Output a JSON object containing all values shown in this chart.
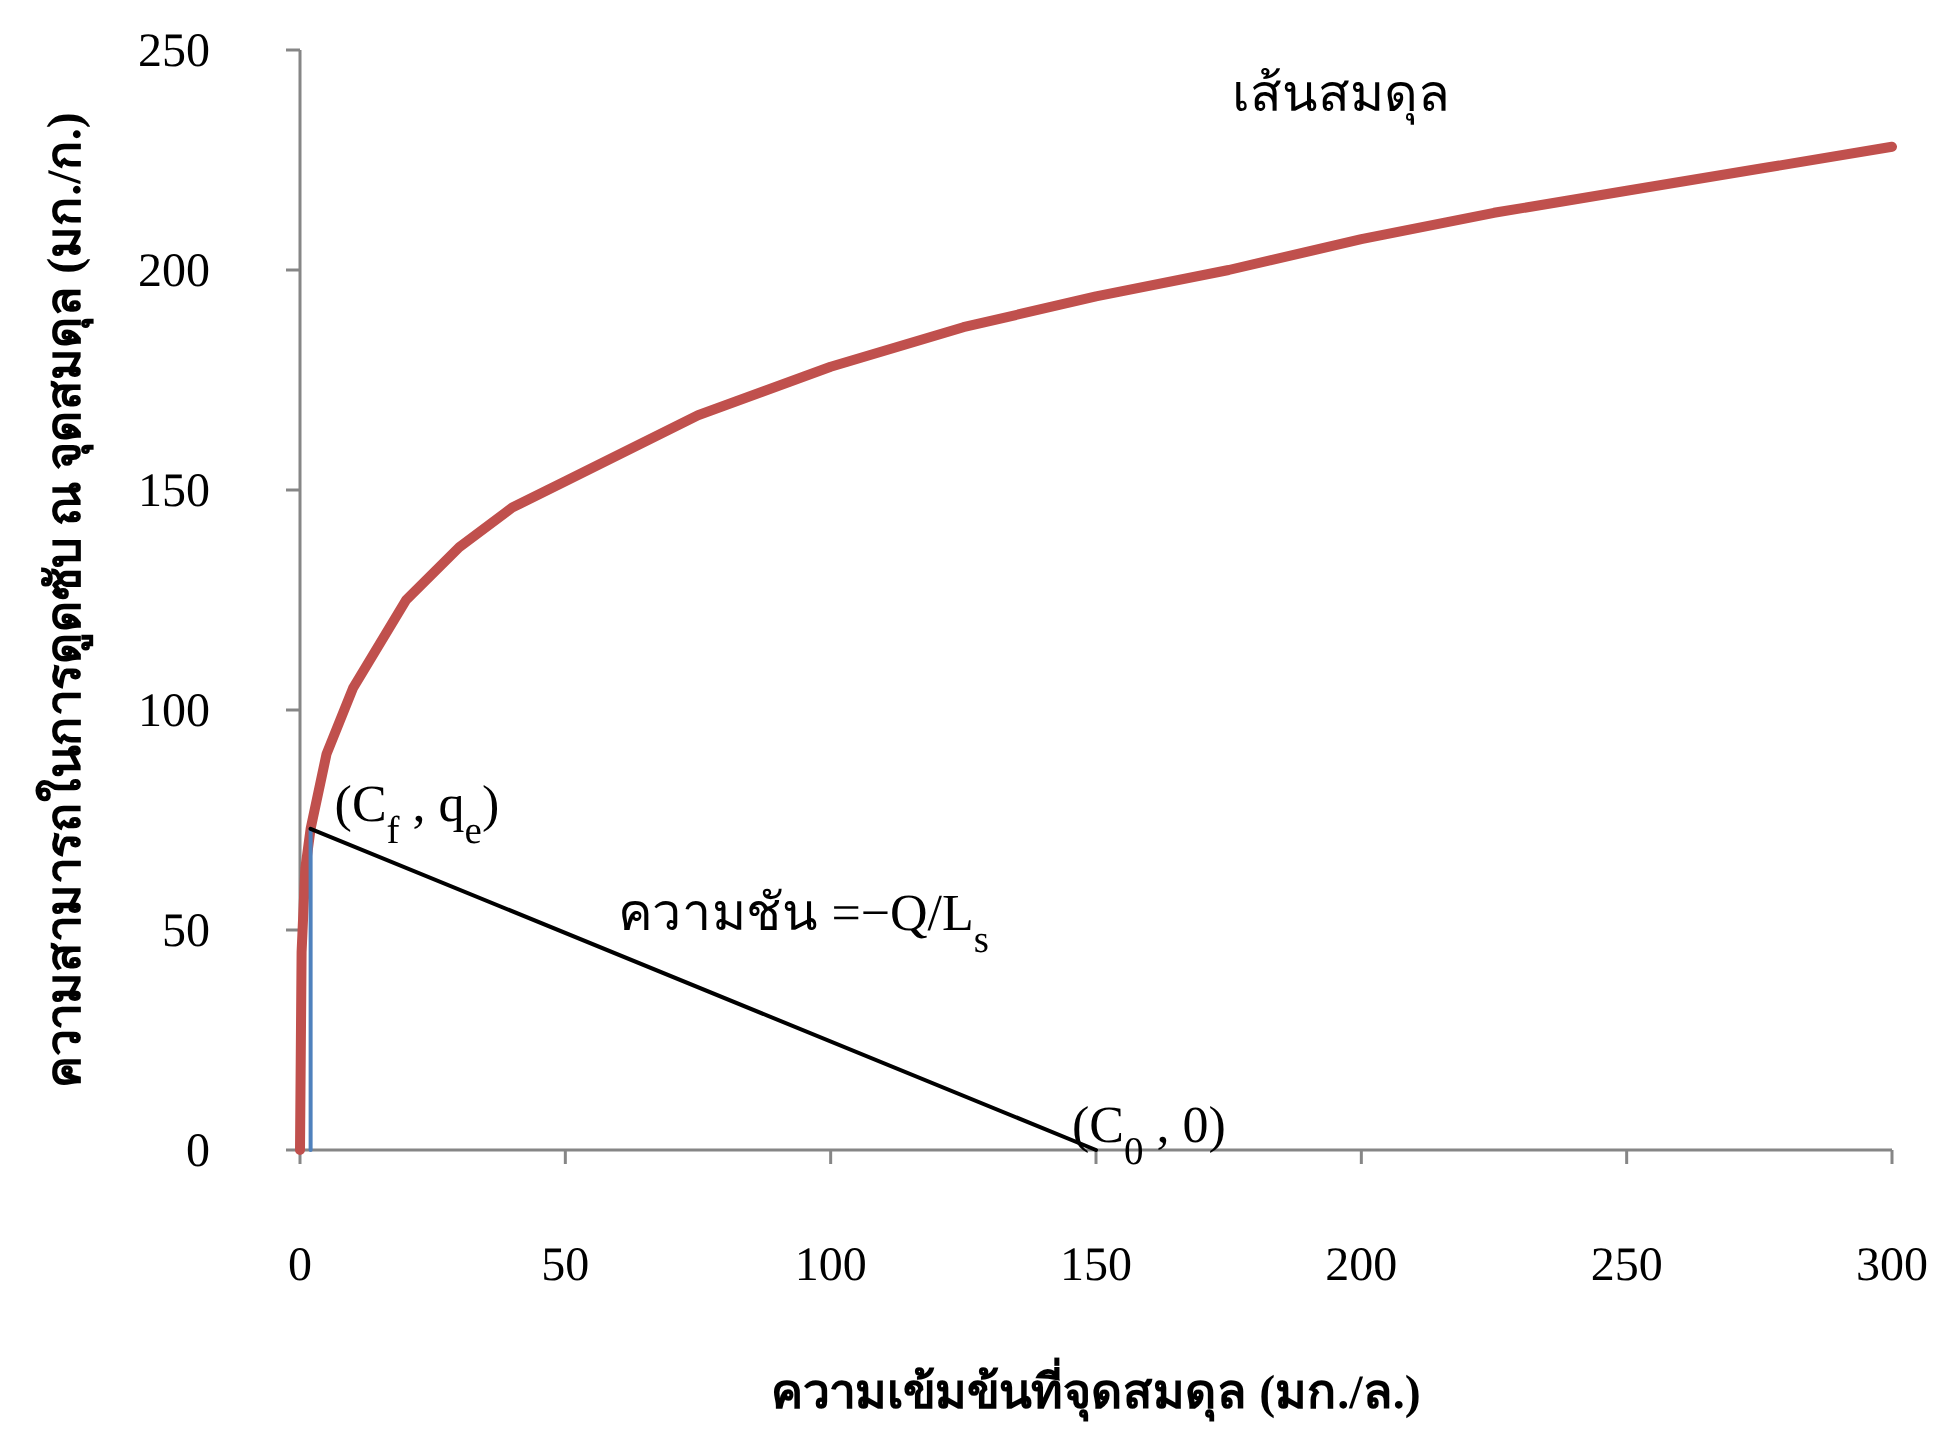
{
  "chart_data": {
    "type": "line",
    "xlabel": "ความเข้มข้นที่จุดสมดุล (มก./ล.)",
    "ylabel": "ความสามารถในการดูดซับ ณ จุดสมดุล (มก./ก.)",
    "xlim": [
      0,
      300
    ],
    "ylim": [
      0,
      250
    ],
    "xticks": [
      0,
      50,
      100,
      150,
      200,
      250,
      300
    ],
    "yticks": [
      0,
      50,
      100,
      150,
      200,
      250
    ],
    "grid": false,
    "marker": "none",
    "line_style": "solid",
    "series": [
      {
        "name": "เส้นสมดุล",
        "color": "#c0504d",
        "x": [
          0,
          0.3,
          1,
          2,
          5,
          10,
          20,
          30,
          40,
          50,
          75,
          100,
          125,
          150,
          175,
          200,
          225,
          250,
          275,
          300
        ],
        "values": [
          0,
          45,
          64,
          73,
          90,
          105,
          125,
          137,
          146,
          152,
          167,
          178,
          187,
          194,
          200,
          207,
          213,
          218,
          223,
          228
        ]
      },
      {
        "color": "#4f81bd",
        "x": [
          2,
          2
        ],
        "values": [
          0,
          73
        ]
      },
      {
        "color": "#000000",
        "x": [
          2,
          150
        ],
        "values": [
          73,
          0
        ]
      }
    ],
    "annotations": [
      {
        "text": "(C$_{f}$ , q$_{e}$)",
        "x": 2,
        "y": 73
      },
      "ความชัน =−Q/L$_{s}$",
      {
        "text": "(C$_{0}$ , 0)",
        "x": 150,
        "y": 0
      }
    ]
  }
}
